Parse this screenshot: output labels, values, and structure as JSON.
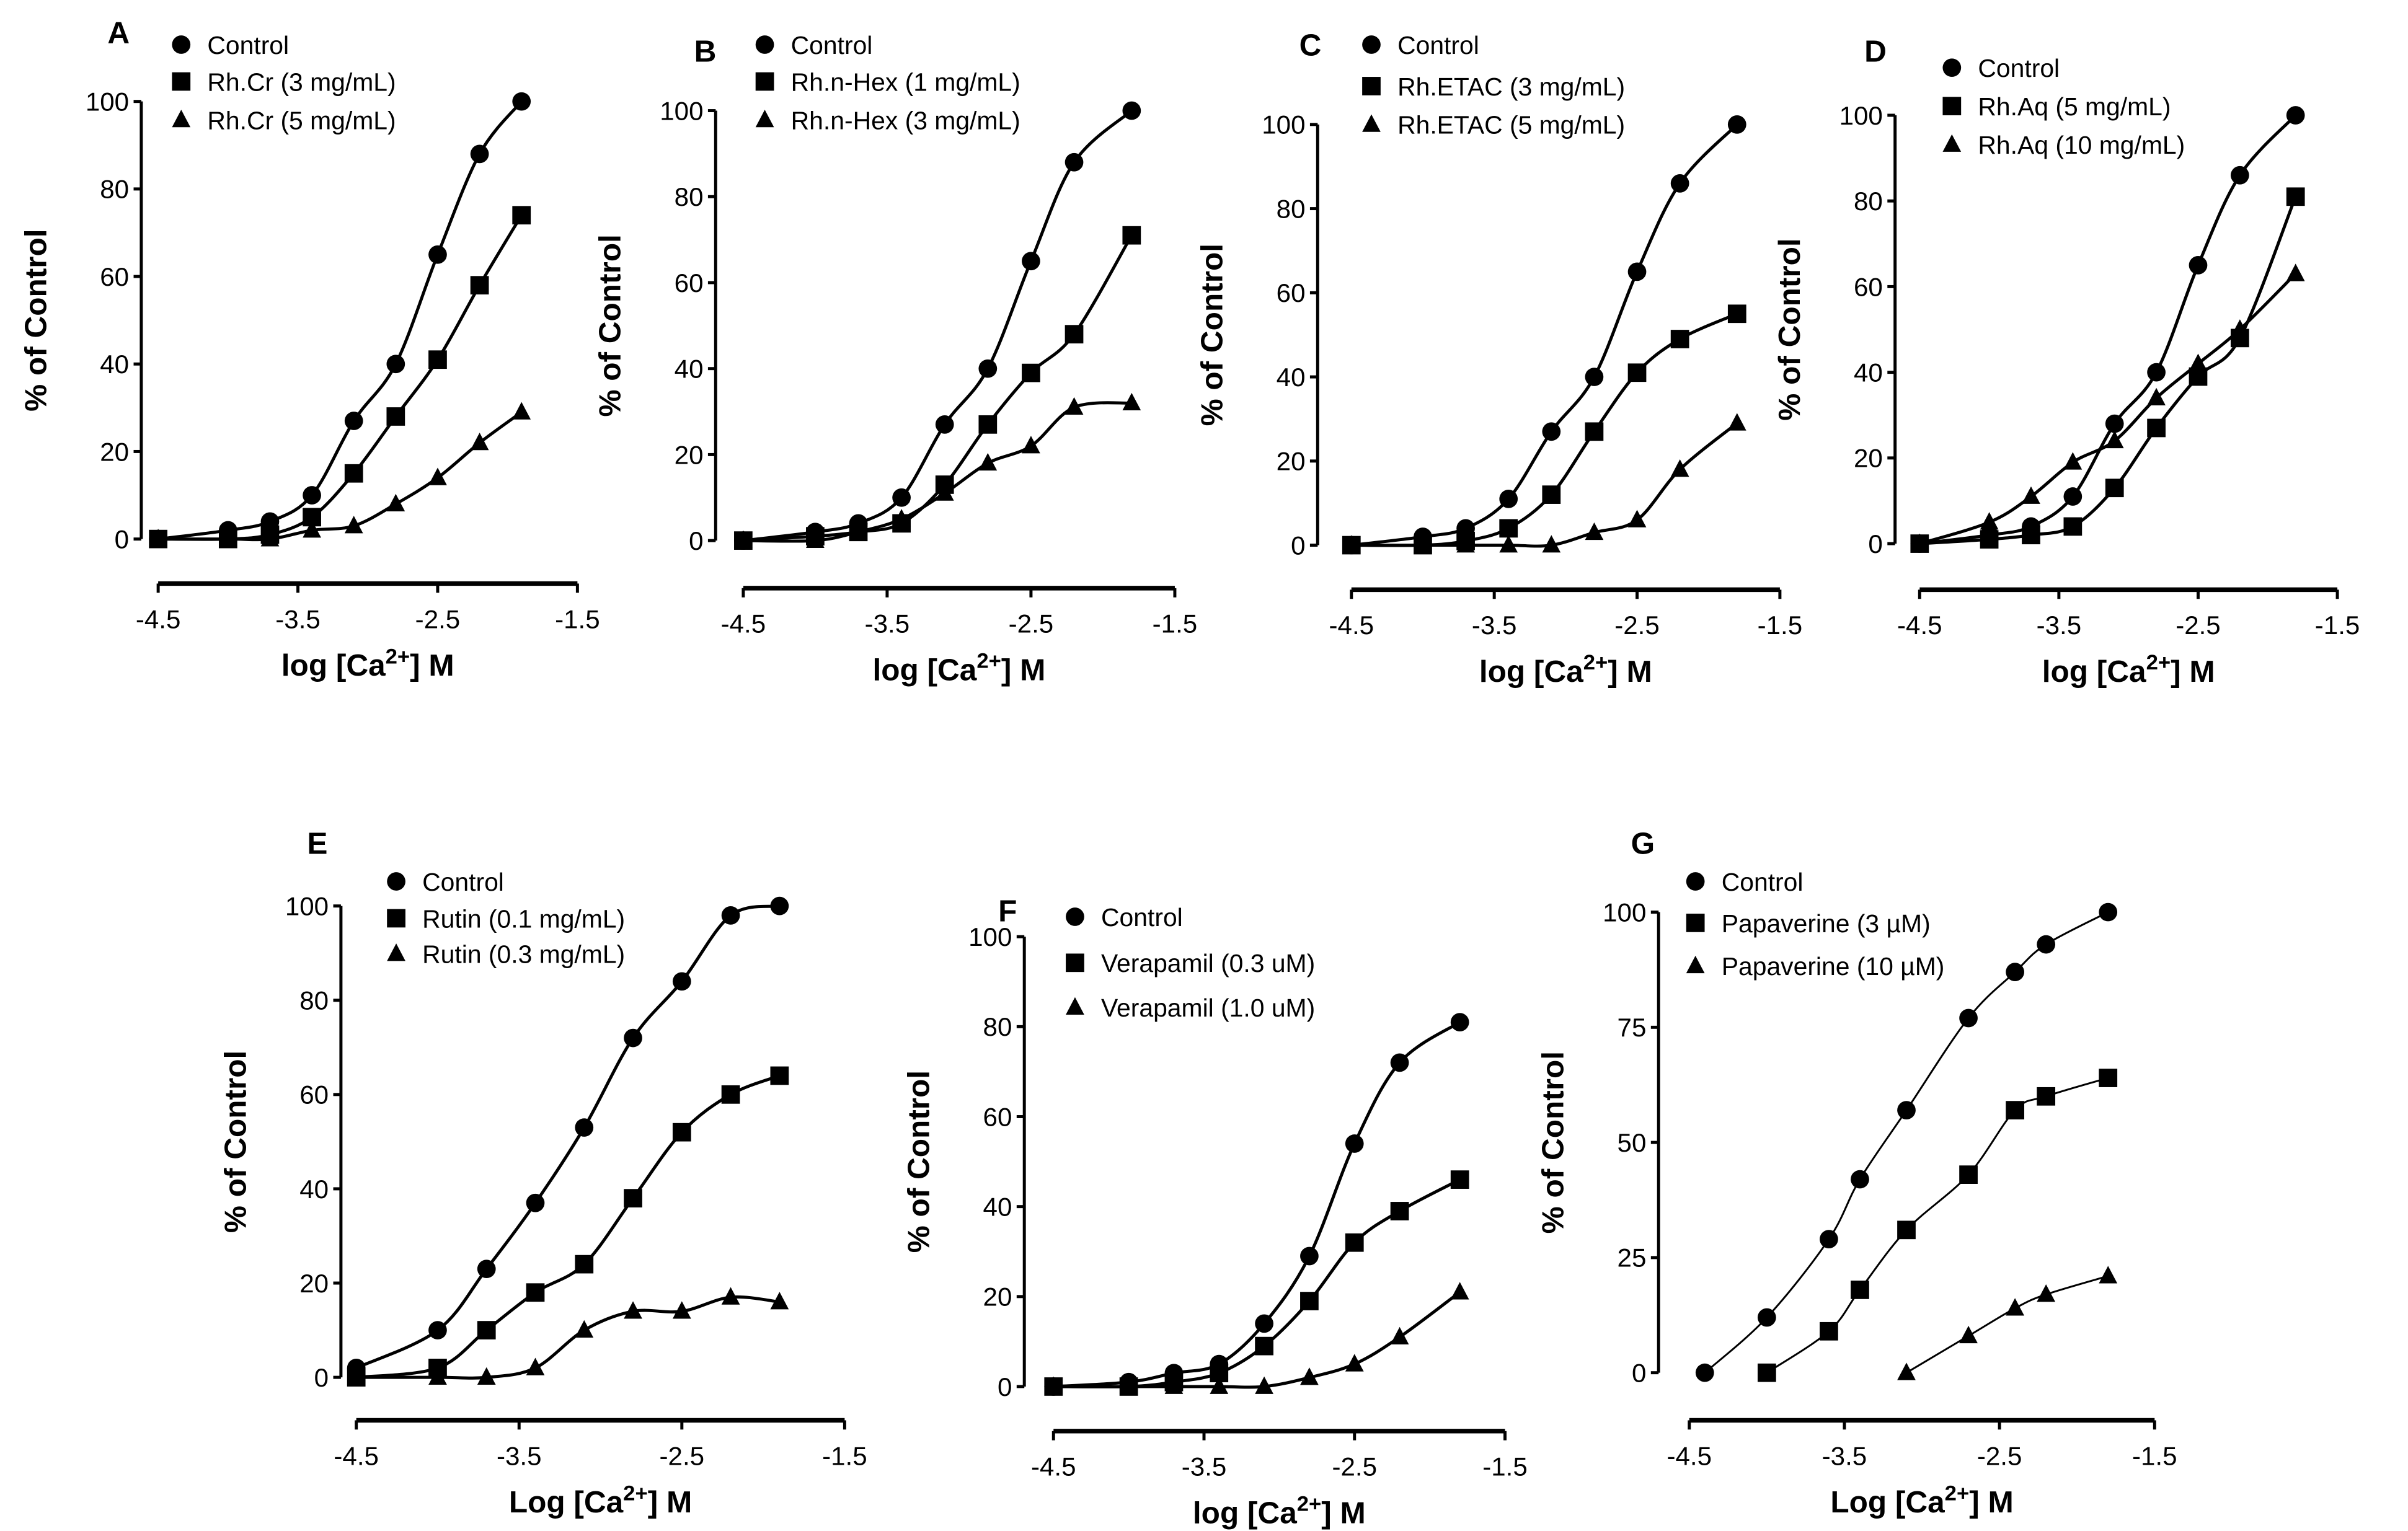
{
  "chart_data": [
    {
      "type": "line",
      "panel": "A",
      "xlabel": "log [Ca2+] M",
      "ylabel": "% of Control",
      "xlim": [
        -4.5,
        -1.5
      ],
      "ylim": [
        0,
        100
      ],
      "xticks": [
        -4.5,
        -3.5,
        -2.5,
        -1.5
      ],
      "yticks": [
        0,
        20,
        40,
        60,
        80,
        100
      ],
      "series": [
        {
          "name": "Control",
          "marker": "circle",
          "x": [
            -4.5,
            -4,
            -3.7,
            -3.4,
            -3.1,
            -2.8,
            -2.5,
            -2.2,
            -1.9
          ],
          "y": [
            0,
            2,
            4,
            10,
            27,
            40,
            65,
            88,
            100
          ]
        },
        {
          "name": "Rh.Cr (3 mg/mL)",
          "marker": "square",
          "x": [
            -4.5,
            -4,
            -3.7,
            -3.4,
            -3.1,
            -2.8,
            -2.5,
            -2.2,
            -1.9
          ],
          "y": [
            0,
            0,
            1,
            5,
            15,
            28,
            41,
            58,
            74
          ]
        },
        {
          "name": "Rh.Cr (5 mg/mL)",
          "marker": "triangle",
          "x": [
            -4.5,
            -4,
            -3.7,
            -3.4,
            -3.1,
            -2.8,
            -2.5,
            -2.2,
            -1.9
          ],
          "y": [
            0,
            0,
            0,
            2,
            3,
            8,
            14,
            22,
            29
          ]
        }
      ]
    },
    {
      "type": "line",
      "panel": "B",
      "xlabel": "log [Ca2+] M",
      "ylabel": "% of Control",
      "xlim": [
        -4.5,
        -1.5
      ],
      "ylim": [
        0,
        100
      ],
      "xticks": [
        -4.5,
        -3.5,
        -2.5,
        -1.5
      ],
      "yticks": [
        0,
        20,
        40,
        60,
        80,
        100
      ],
      "series": [
        {
          "name": "Control",
          "marker": "circle",
          "x": [
            -4.5,
            -4,
            -3.7,
            -3.4,
            -3.1,
            -2.8,
            -2.5,
            -2.2,
            -1.8
          ],
          "y": [
            0,
            2,
            4,
            10,
            27,
            40,
            65,
            88,
            100
          ]
        },
        {
          "name": "Rh.n-Hex (1 mg/mL)",
          "marker": "square",
          "x": [
            -4.5,
            -4,
            -3.7,
            -3.4,
            -3.1,
            -2.8,
            -2.5,
            -2.2,
            -1.8
          ],
          "y": [
            0,
            1,
            2,
            4,
            13,
            27,
            39,
            48,
            71
          ]
        },
        {
          "name": "Rh.n-Hex (3 mg/mL)",
          "marker": "triangle",
          "x": [
            -4.5,
            -4,
            -3.7,
            -3.4,
            -3.1,
            -2.8,
            -2.5,
            -2.2,
            -1.8
          ],
          "y": [
            0,
            0,
            2,
            5,
            11,
            18,
            22,
            31,
            32
          ]
        }
      ]
    },
    {
      "type": "line",
      "panel": "C",
      "xlabel": "log [Ca2+] M",
      "ylabel": "% of Control",
      "xlim": [
        -4.5,
        -1.5
      ],
      "ylim": [
        0,
        100
      ],
      "xticks": [
        -4.5,
        -3.5,
        -2.5,
        -1.5
      ],
      "yticks": [
        0,
        20,
        40,
        60,
        80,
        100
      ],
      "series": [
        {
          "name": "Control",
          "marker": "circle",
          "x": [
            -4.5,
            -4,
            -3.7,
            -3.4,
            -3.1,
            -2.8,
            -2.5,
            -2.2,
            -1.8
          ],
          "y": [
            0,
            2,
            4,
            11,
            27,
            40,
            65,
            86,
            100
          ]
        },
        {
          "name": "Rh.ETAC (3 mg/mL)",
          "marker": "square",
          "x": [
            -4.5,
            -4,
            -3.7,
            -3.4,
            -3.1,
            -2.8,
            -2.5,
            -2.2,
            -1.8
          ],
          "y": [
            0,
            0,
            1,
            4,
            12,
            27,
            41,
            49,
            55
          ]
        },
        {
          "name": "Rh.ETAC (5 mg/mL)",
          "marker": "triangle",
          "x": [
            -4.5,
            -4,
            -3.7,
            -3.4,
            -3.1,
            -2.8,
            -2.5,
            -2.2,
            -1.8
          ],
          "y": [
            0,
            0,
            0,
            0,
            0,
            3,
            6,
            18,
            29
          ]
        }
      ]
    },
    {
      "type": "line",
      "panel": "D",
      "xlabel": "log [Ca2+] M",
      "ylabel": "% of Control",
      "xlim": [
        -4.5,
        -1.5
      ],
      "ylim": [
        0,
        100
      ],
      "xticks": [
        -4.5,
        -3.5,
        -2.5,
        -1.5
      ],
      "yticks": [
        0,
        20,
        40,
        60,
        80,
        100
      ],
      "series": [
        {
          "name": "Control",
          "marker": "circle",
          "x": [
            -4.5,
            -4,
            -3.7,
            -3.4,
            -3.1,
            -2.8,
            -2.5,
            -2.2,
            -1.8
          ],
          "y": [
            0,
            2,
            4,
            11,
            28,
            40,
            65,
            86,
            100
          ]
        },
        {
          "name": "Rh.Aq (5 mg/mL)",
          "marker": "square",
          "x": [
            -4.5,
            -4,
            -3.7,
            -3.4,
            -3.1,
            -2.8,
            -2.5,
            -2.2,
            -1.8
          ],
          "y": [
            0,
            1,
            2,
            4,
            13,
            27,
            39,
            48,
            81
          ]
        },
        {
          "name": "Rh.Aq (10 mg/mL)",
          "marker": "triangle",
          "x": [
            -4.5,
            -4,
            -3.7,
            -3.4,
            -3.1,
            -2.8,
            -2.5,
            -2.2,
            -1.8
          ],
          "y": [
            0,
            5,
            11,
            19,
            24,
            34,
            42,
            50,
            63
          ]
        }
      ]
    },
    {
      "type": "line",
      "panel": "E",
      "xlabel": "Log [Ca2+] M",
      "ylabel": "% of Control",
      "xlim": [
        -4.5,
        -1.5
      ],
      "ylim": [
        0,
        100
      ],
      "xticks": [
        -4.5,
        -3.5,
        -2.5,
        -1.5
      ],
      "yticks": [
        0,
        20,
        40,
        60,
        80,
        100
      ],
      "series": [
        {
          "name": "Control",
          "marker": "circle",
          "x": [
            -4.5,
            -4,
            -3.7,
            -3.4,
            -3.1,
            -2.8,
            -2.5,
            -2.2,
            -1.9
          ],
          "y": [
            2,
            10,
            23,
            37,
            53,
            72,
            84,
            98,
            100
          ]
        },
        {
          "name": "Rutin (0.1 mg/mL)",
          "marker": "square",
          "x": [
            -4.5,
            -4,
            -3.7,
            -3.4,
            -3.1,
            -2.8,
            -2.5,
            -2.2,
            -1.9
          ],
          "y": [
            0,
            2,
            10,
            18,
            24,
            38,
            52,
            60,
            64
          ]
        },
        {
          "name": "Rutin (0.3 mg/mL)",
          "marker": "triangle",
          "x": [
            -4.5,
            -4,
            -3.7,
            -3.4,
            -3.1,
            -2.8,
            -2.5,
            -2.2,
            -1.9
          ],
          "y": [
            0,
            0,
            0,
            2,
            10,
            14,
            14,
            17,
            16
          ]
        }
      ]
    },
    {
      "type": "line",
      "panel": "F",
      "xlabel": "log [Ca2+] M",
      "ylabel": "% of Control",
      "xlim": [
        -4.5,
        -1.5
      ],
      "ylim": [
        0,
        100
      ],
      "xticks": [
        -4.5,
        -3.5,
        -2.5,
        -1.5
      ],
      "yticks": [
        0,
        20,
        40,
        60,
        80,
        100
      ],
      "series": [
        {
          "name": "Control",
          "marker": "circle",
          "x": [
            -4.5,
            -4,
            -3.7,
            -3.4,
            -3.1,
            -2.8,
            -2.5,
            -2.2,
            -1.8
          ],
          "y": [
            0,
            1,
            3,
            5,
            14,
            29,
            54,
            72,
            81
          ]
        },
        {
          "name": "Verapamil (0.3 uM)",
          "marker": "square",
          "x": [
            -4.5,
            -4,
            -3.7,
            -3.4,
            -3.1,
            -2.8,
            -2.5,
            -2.2,
            -1.8
          ],
          "y": [
            0,
            0,
            1,
            3,
            9,
            19,
            32,
            39,
            46
          ]
        },
        {
          "name": "Verapamil (1.0 uM)",
          "marker": "triangle",
          "x": [
            -4.5,
            -4,
            -3.7,
            -3.4,
            -3.1,
            -2.8,
            -2.5,
            -2.2,
            -1.8
          ],
          "y": [
            0,
            0,
            0,
            0,
            0,
            2,
            5,
            11,
            21
          ]
        }
      ]
    },
    {
      "type": "line",
      "panel": "G",
      "xlabel": "Log [Ca2+] M",
      "ylabel": "% of Control",
      "xlim": [
        -4.5,
        -1.5
      ],
      "ylim": [
        0,
        100
      ],
      "xticks": [
        -4.5,
        -3.5,
        -2.5,
        -1.5
      ],
      "yticks": [
        0,
        25,
        50,
        75,
        100
      ],
      "series": [
        {
          "name": "Control",
          "marker": "circle",
          "x": [
            -4.4,
            -4,
            -3.6,
            -3.4,
            -3.1,
            -2.7,
            -2.4,
            -2.2,
            -1.8
          ],
          "y": [
            0,
            12,
            29,
            42,
            57,
            77,
            87,
            93,
            100
          ]
        },
        {
          "name": "Papaverine (3 µM)",
          "marker": "square",
          "x": [
            -4,
            -3.6,
            -3.4,
            -3.1,
            -2.7,
            -2.4,
            -2.2,
            -1.8
          ],
          "y": [
            0,
            9,
            18,
            31,
            43,
            57,
            60,
            64
          ]
        },
        {
          "name": "Papaverine (10 µM)",
          "marker": "triangle",
          "x": [
            -3.1,
            -2.7,
            -2.4,
            -2.2,
            -1.8
          ],
          "y": [
            0,
            8,
            14,
            17,
            21
          ]
        }
      ]
    }
  ]
}
